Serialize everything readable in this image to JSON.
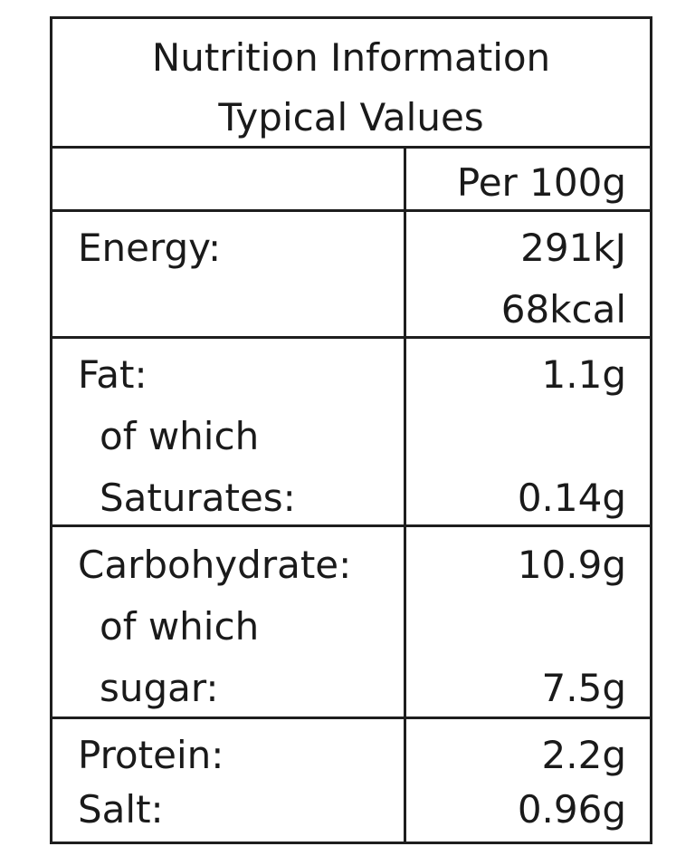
{
  "header": {
    "title": "Nutrition Information",
    "subtitle": "Typical Values"
  },
  "column_header": "Per 100g",
  "rows": {
    "energy": {
      "label": "Energy:",
      "value_kj": "291kJ",
      "value_kcal": "68kcal"
    },
    "fat": {
      "label": "Fat:",
      "value": "1.1g",
      "of_which": "of which",
      "sub_label": "Saturates:",
      "sub_value": "0.14g"
    },
    "carbohydrate": {
      "label": "Carbohydrate:",
      "value": "10.9g",
      "of_which": "of which",
      "sub_label": "sugar:",
      "sub_value": "7.5g"
    },
    "protein": {
      "label": "Protein:",
      "value": "2.2g"
    },
    "salt": {
      "label": "Salt:",
      "value": "0.96g"
    }
  }
}
